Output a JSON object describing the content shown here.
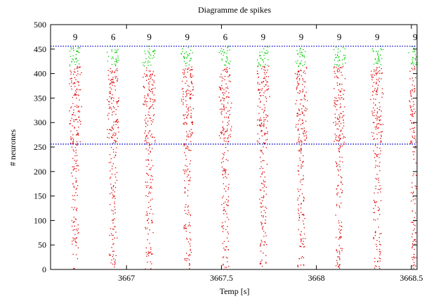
{
  "chart_data": {
    "type": "scatter",
    "title": "Diagramme de spikes",
    "xlabel": "Temp [s]",
    "ylabel": "# neurones",
    "xlim": [
      3666.6,
      3668.53
    ],
    "ylim": [
      0,
      500
    ],
    "xticks": [
      {
        "value": 3667,
        "label": "3667"
      },
      {
        "value": 3667.5,
        "label": "3667.5"
      },
      {
        "value": 3668,
        "label": "3668"
      },
      {
        "value": 3668.5,
        "label": "3668.5"
      }
    ],
    "yticks": [
      {
        "value": 0,
        "label": "0"
      },
      {
        "value": 50,
        "label": "50"
      },
      {
        "value": 100,
        "label": "100"
      },
      {
        "value": 150,
        "label": "150"
      },
      {
        "value": 200,
        "label": "200"
      },
      {
        "value": 250,
        "label": "250"
      },
      {
        "value": 300,
        "label": "300"
      },
      {
        "value": 350,
        "label": "350"
      },
      {
        "value": 400,
        "label": "400"
      },
      {
        "value": 450,
        "label": "450"
      },
      {
        "value": 500,
        "label": "500"
      }
    ],
    "grid": false,
    "hlines": [
      {
        "y": 256,
        "color": "#0000cc",
        "style": "dotted"
      },
      {
        "y": 456,
        "color": "#0000cc",
        "style": "dotted"
      }
    ],
    "bursts": [
      {
        "t": 3666.73,
        "count": "9"
      },
      {
        "t": 3666.93,
        "count": "6"
      },
      {
        "t": 3667.12,
        "count": "9"
      },
      {
        "t": 3667.32,
        "count": "9"
      },
      {
        "t": 3667.52,
        "count": "6"
      },
      {
        "t": 3667.72,
        "count": "9"
      },
      {
        "t": 3667.92,
        "count": "9"
      },
      {
        "t": 3668.12,
        "count": "9"
      },
      {
        "t": 3668.32,
        "count": "9"
      },
      {
        "t": 3668.52,
        "count": "9"
      }
    ],
    "series": [
      {
        "color": "#dd0000",
        "neuron_range": [
          0,
          256
        ],
        "density": "sparse"
      },
      {
        "color": "#dd0000",
        "neuron_range": [
          256,
          415
        ],
        "density": "dense"
      },
      {
        "color": "#00cc00",
        "neuron_range": [
          415,
          456
        ],
        "density": "dense"
      }
    ],
    "colors": {
      "excitatory_a": "#dd0000",
      "excitatory_b": "#dd0000",
      "inhibitory": "#00cc00",
      "boundary": "#0000cc"
    }
  }
}
